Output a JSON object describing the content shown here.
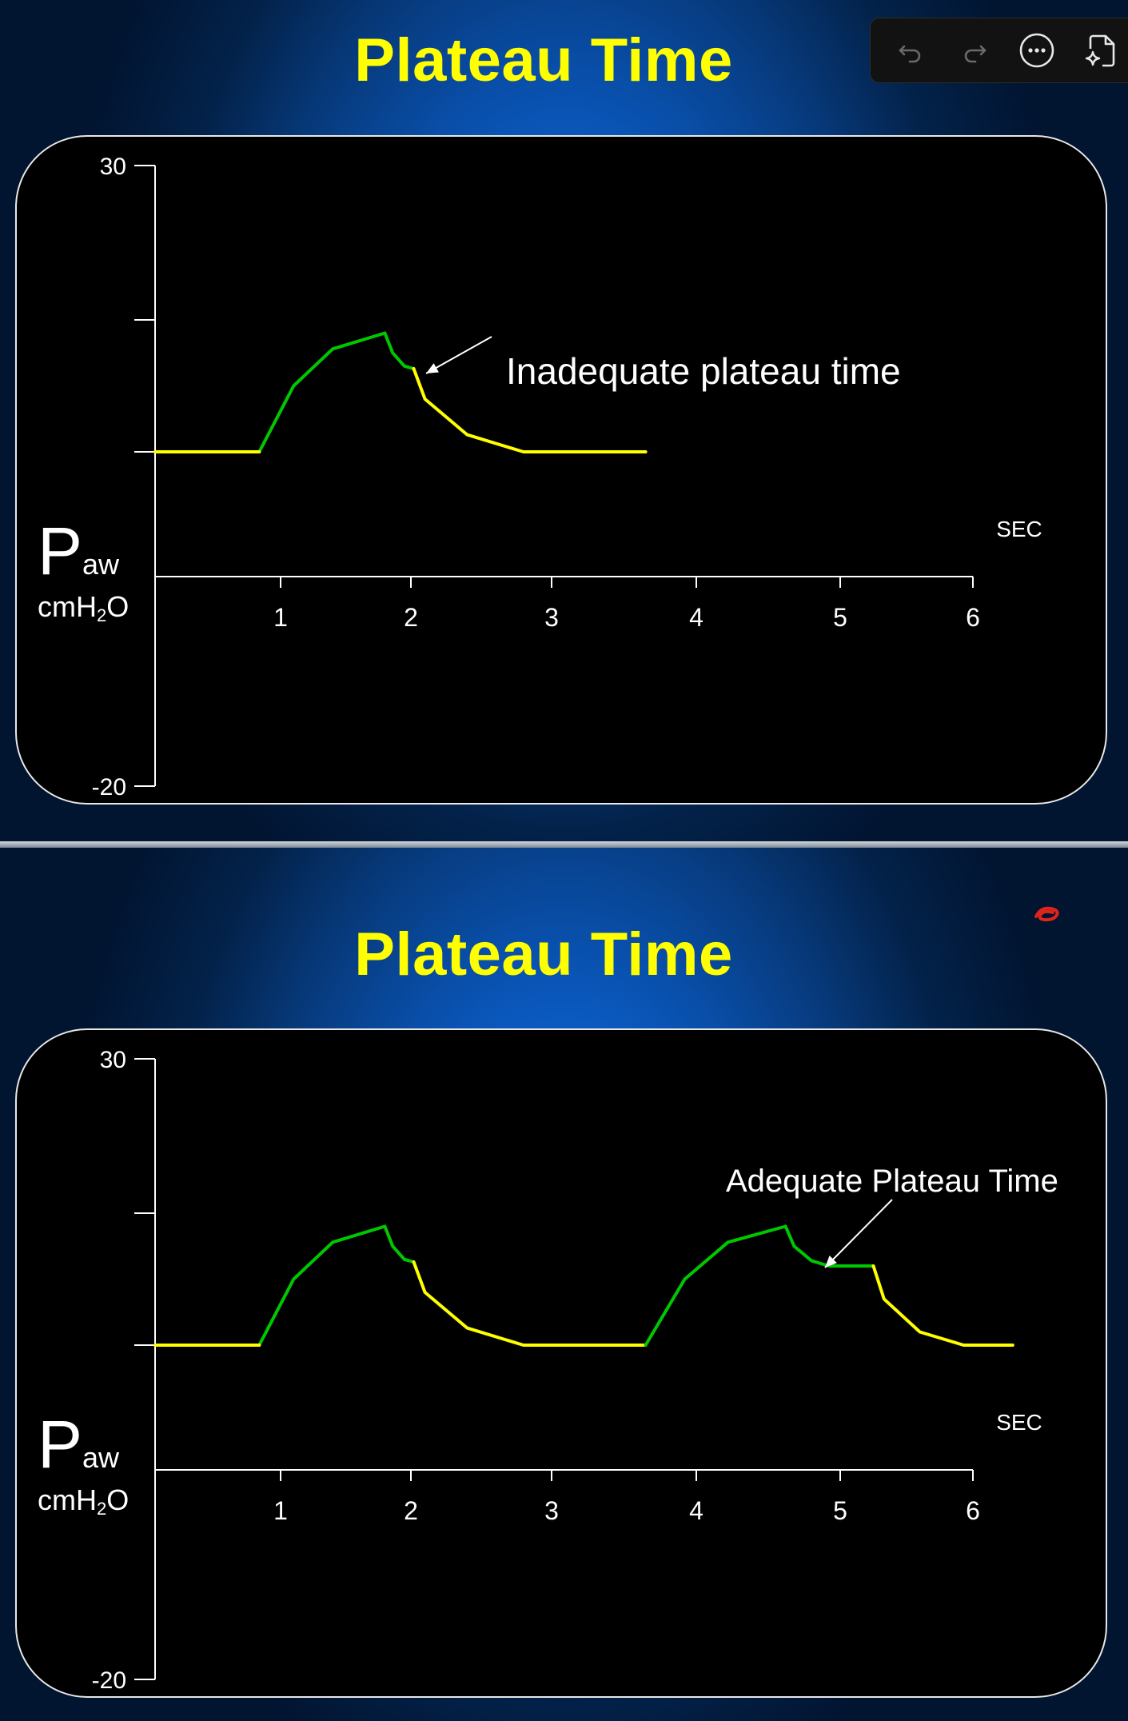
{
  "toolbar": {
    "buttons": [
      {
        "name": "undo-icon",
        "enabled": false
      },
      {
        "name": "redo-icon",
        "enabled": false
      },
      {
        "name": "more-options-icon",
        "enabled": true
      },
      {
        "name": "ai-document-icon",
        "enabled": true
      }
    ]
  },
  "colors": {
    "title": "#ffff00",
    "inspiration": "#00c800",
    "expiration": "#ffff00",
    "axis": "#ffffff",
    "annotation_mark": "#e0241a"
  },
  "slides": [
    {
      "title": "Plateau Time",
      "y_label": "P",
      "y_label_sub": "aw",
      "y_unit_prefix": "cmH",
      "y_unit_sub": "2",
      "y_unit_suffix": "O",
      "x_unit": "SEC",
      "annotation": "Inadequate plateau time",
      "chart_data": {
        "type": "line",
        "x_unit": "SEC",
        "xlim": [
          0,
          6
        ],
        "ylim": [
          -20,
          30
        ],
        "x_ticks": [
          "1",
          "2",
          "3",
          "4",
          "5",
          "6"
        ],
        "y_tick_labels": [
          "30",
          "-20"
        ],
        "y_ticks": [
          30,
          20,
          10,
          -20
        ],
        "series": [
          {
            "phase": "inspiration",
            "points": [
              [
                0.83,
                10
              ],
              [
                1.1,
                15
              ],
              [
                1.4,
                17.8
              ],
              [
                1.8,
                19
              ]
            ]
          },
          {
            "phase": "inspiration",
            "points": [
              [
                1.8,
                19
              ],
              [
                1.86,
                17.5
              ],
              [
                1.95,
                16.5
              ],
              [
                2.02,
                16.3
              ]
            ]
          },
          {
            "phase": "expiration",
            "points": [
              [
                0,
                10
              ],
              [
                0.83,
                10
              ]
            ]
          },
          {
            "phase": "expiration",
            "points": [
              [
                2.02,
                16.3
              ],
              [
                2.1,
                14
              ],
              [
                2.4,
                11.3
              ],
              [
                2.8,
                10
              ],
              [
                3.65,
                10
              ]
            ]
          }
        ]
      }
    },
    {
      "title": "Plateau Time",
      "y_label": "P",
      "y_label_sub": "aw",
      "y_unit_prefix": "cmH",
      "y_unit_sub": "2",
      "y_unit_suffix": "O",
      "x_unit": "SEC",
      "annotation": "Adequate Plateau Time",
      "chart_data": {
        "type": "line",
        "x_unit": "SEC",
        "xlim": [
          0,
          6
        ],
        "ylim": [
          -20,
          30
        ],
        "x_ticks": [
          "1",
          "2",
          "3",
          "4",
          "5",
          "6"
        ],
        "y_tick_labels": [
          "30",
          "-20"
        ],
        "y_ticks": [
          30,
          20,
          10,
          -20
        ],
        "series": [
          {
            "phase": "inspiration",
            "points": [
              [
                0.83,
                10
              ],
              [
                1.1,
                15
              ],
              [
                1.4,
                17.8
              ],
              [
                1.8,
                19
              ]
            ]
          },
          {
            "phase": "inspiration",
            "points": [
              [
                1.8,
                19
              ],
              [
                1.86,
                17.5
              ],
              [
                1.95,
                16.5
              ],
              [
                2.02,
                16.3
              ]
            ]
          },
          {
            "phase": "expiration",
            "points": [
              [
                0,
                10
              ],
              [
                0.83,
                10
              ]
            ]
          },
          {
            "phase": "expiration",
            "points": [
              [
                2.02,
                16.3
              ],
              [
                2.1,
                14
              ],
              [
                2.4,
                11.3
              ],
              [
                2.8,
                10
              ],
              [
                3.65,
                10
              ]
            ]
          },
          {
            "phase": "inspiration",
            "points": [
              [
                3.65,
                10
              ],
              [
                3.92,
                15
              ],
              [
                4.22,
                17.8
              ],
              [
                4.62,
                19
              ]
            ]
          },
          {
            "phase": "inspiration",
            "points": [
              [
                4.62,
                19
              ],
              [
                4.68,
                17.5
              ],
              [
                4.8,
                16.4
              ],
              [
                4.92,
                16
              ],
              [
                5.25,
                16
              ]
            ]
          },
          {
            "phase": "expiration",
            "points": [
              [
                5.25,
                16
              ],
              [
                5.33,
                13.5
              ],
              [
                5.6,
                11
              ],
              [
                5.93,
                10
              ],
              [
                6.3,
                10
              ]
            ]
          }
        ]
      }
    }
  ]
}
